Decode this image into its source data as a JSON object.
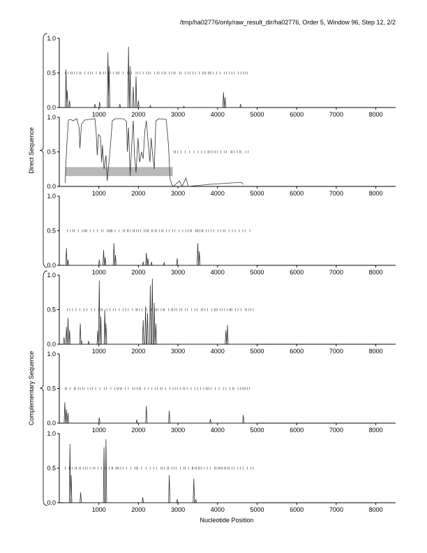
{
  "header": "/tmp/ha02776/only/raw_result_dir/ha02776, Order 5, Window 96, Step 12, 2/2",
  "group_labels": [
    "Direct Sequence",
    "Complementary Sequence"
  ],
  "xlabel": "Nucleotide Position",
  "x_ticks": [
    1000,
    2000,
    3000,
    4000,
    5000,
    6000,
    7000,
    8000
  ],
  "y_ticks": [
    "0.0",
    "0.5",
    "1.0"
  ],
  "colors": {
    "axis": "#000000",
    "trace": "#333333",
    "marker": "#555555",
    "band": "#b8b8b8"
  },
  "chart_data": [
    {
      "type": "line",
      "panel": 1,
      "xlim": [
        0,
        8500
      ],
      "ylim": [
        0,
        1
      ],
      "marker_range": [
        150,
        4750
      ],
      "peaks": [
        [
          170,
          0.55
        ],
        [
          200,
          0.25
        ],
        [
          260,
          0.1
        ],
        [
          900,
          0.05
        ],
        [
          1020,
          0.08
        ],
        [
          1230,
          0.8
        ],
        [
          1260,
          0.6
        ],
        [
          1530,
          0.05
        ],
        [
          1750,
          0.88
        ],
        [
          1790,
          0.6
        ],
        [
          1870,
          0.3
        ],
        [
          1940,
          0.45
        ],
        [
          2000,
          0.1
        ],
        [
          2300,
          0.03
        ],
        [
          3150,
          0.02
        ],
        [
          4150,
          0.22
        ],
        [
          4190,
          0.15
        ],
        [
          4580,
          0.05
        ]
      ],
      "series": [
        {
          "values_note": ""
        }
      ]
    },
    {
      "type": "line",
      "panel": 2,
      "xlim": [
        0,
        8500
      ],
      "ylim": [
        0,
        1
      ],
      "marker_range": [
        2900,
        4800
      ],
      "band": [
        150,
        2870,
        0.15,
        0.28
      ],
      "segments": [
        [
          150,
          0.05
        ],
        [
          160,
          0.25
        ],
        [
          190,
          0.6
        ],
        [
          230,
          0.96
        ],
        [
          280,
          0.97
        ],
        [
          350,
          0.95
        ],
        [
          440,
          0.98
        ],
        [
          500,
          0.85
        ],
        [
          520,
          0.55
        ],
        [
          560,
          0.9
        ],
        [
          640,
          0.96
        ],
        [
          760,
          0.97
        ],
        [
          900,
          0.98
        ],
        [
          930,
          0.8
        ],
        [
          960,
          0.45
        ],
        [
          990,
          0.75
        ],
        [
          1040,
          0.72
        ],
        [
          1070,
          0.35
        ],
        [
          1090,
          0.6
        ],
        [
          1130,
          0.25
        ],
        [
          1180,
          0.45
        ],
        [
          1210,
          0.08
        ],
        [
          1280,
          0.5
        ],
        [
          1340,
          0.95
        ],
        [
          1420,
          0.98
        ],
        [
          1620,
          0.98
        ],
        [
          1700,
          0.94
        ],
        [
          1720,
          0.5
        ],
        [
          1750,
          0.85
        ],
        [
          1790,
          0.15
        ],
        [
          1830,
          0.6
        ],
        [
          1870,
          0.95
        ],
        [
          1900,
          0.45
        ],
        [
          1940,
          0.2
        ],
        [
          1990,
          0.7
        ],
        [
          2030,
          0.35
        ],
        [
          2080,
          0.5
        ],
        [
          2120,
          0.4
        ],
        [
          2160,
          0.8
        ],
        [
          2200,
          0.95
        ],
        [
          2250,
          0.6
        ],
        [
          2290,
          0.35
        ],
        [
          2320,
          0.7
        ],
        [
          2360,
          0.45
        ],
        [
          2400,
          0.25
        ],
        [
          2440,
          0.95
        ],
        [
          2520,
          0.98
        ],
        [
          2700,
          0.97
        ],
        [
          2760,
          0.6
        ],
        [
          2800,
          0.1
        ],
        [
          2850,
          0.02
        ],
        [
          2880,
          0
        ],
        [
          3040,
          0.08
        ],
        [
          3100,
          0
        ],
        [
          3200,
          0.12
        ],
        [
          3260,
          0
        ],
        [
          3800,
          0.03
        ],
        [
          4600,
          0.06
        ],
        [
          4650,
          0.03
        ]
      ]
    },
    {
      "type": "line",
      "panel": 3,
      "xlim": [
        0,
        8500
      ],
      "ylim": [
        0,
        1
      ],
      "marker_range": [
        200,
        4850
      ],
      "peaks": [
        [
          180,
          0.25
        ],
        [
          220,
          0.08
        ],
        [
          1010,
          0.08
        ],
        [
          1120,
          0.22
        ],
        [
          1160,
          0.12
        ],
        [
          1380,
          0.32
        ],
        [
          1420,
          0.15
        ],
        [
          2120,
          0.05
        ],
        [
          2200,
          0.18
        ],
        [
          2240,
          0.1
        ],
        [
          2330,
          0.05
        ],
        [
          2650,
          0.04
        ],
        [
          2980,
          0.1
        ],
        [
          3500,
          0.32
        ],
        [
          3540,
          0.2
        ]
      ]
    },
    {
      "type": "line",
      "panel": 4,
      "xlim": [
        0,
        8500
      ],
      "ylim": [
        0,
        1
      ],
      "marker_range": [
        200,
        4900
      ],
      "peaks": [
        [
          120,
          0.1
        ],
        [
          180,
          0.25
        ],
        [
          220,
          0.38
        ],
        [
          260,
          0.2
        ],
        [
          530,
          0.3
        ],
        [
          560,
          0.05
        ],
        [
          740,
          0.04
        ],
        [
          970,
          0.2
        ],
        [
          1010,
          0.92
        ],
        [
          1050,
          0.4
        ],
        [
          1150,
          0.5
        ],
        [
          1180,
          0.3
        ],
        [
          2120,
          0.35
        ],
        [
          2180,
          0.55
        ],
        [
          2230,
          0.45
        ],
        [
          2300,
          0.85
        ],
        [
          2350,
          0.95
        ],
        [
          2400,
          0.6
        ],
        [
          2440,
          0.3
        ],
        [
          4210,
          0.2
        ],
        [
          4250,
          0.28
        ]
      ]
    },
    {
      "type": "line",
      "panel": 5,
      "xlim": [
        0,
        8500
      ],
      "ylim": [
        0,
        1
      ],
      "marker_range": [
        150,
        4900
      ],
      "peaks": [
        [
          140,
          0.3
        ],
        [
          180,
          0.2
        ],
        [
          220,
          0.15
        ],
        [
          1010,
          0.08
        ],
        [
          1960,
          0.05
        ],
        [
          2200,
          0.25
        ],
        [
          2780,
          0.18
        ],
        [
          3820,
          0.06
        ],
        [
          4650,
          0.12
        ]
      ]
    },
    {
      "type": "line",
      "panel": 6,
      "xlim": [
        0,
        8500
      ],
      "ylim": [
        0,
        1
      ],
      "marker_range": [
        150,
        4900
      ],
      "peaks": [
        [
          270,
          0.85
        ],
        [
          300,
          0.4
        ],
        [
          540,
          0.15
        ],
        [
          1130,
          0.8
        ],
        [
          1180,
          0.92
        ],
        [
          2110,
          0.08
        ],
        [
          2780,
          0.4
        ],
        [
          2980,
          0.05
        ],
        [
          3400,
          0.35
        ],
        [
          3450,
          0.05
        ]
      ]
    }
  ]
}
